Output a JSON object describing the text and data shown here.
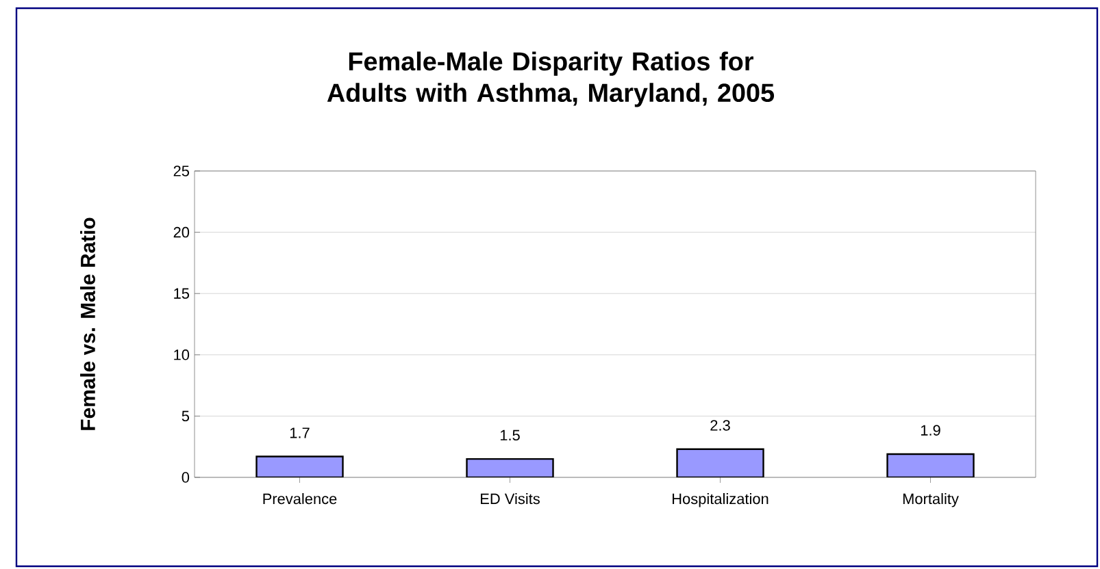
{
  "chart_data": {
    "type": "bar",
    "title": "Female-Male Disparity Ratios for Adults with Asthma, Maryland, 2005",
    "ylabel": "Female vs. Male Ratio",
    "categories": [
      "Prevalence",
      "ED Visits",
      "Hospitalization",
      "Mortality"
    ],
    "values": [
      1.7,
      1.5,
      2.3,
      1.9
    ],
    "color": "#9999ff",
    "ylim": [
      0,
      25
    ],
    "yticks": [
      0,
      5,
      10,
      15,
      20,
      25
    ],
    "grid": "y",
    "data_labels": true
  }
}
